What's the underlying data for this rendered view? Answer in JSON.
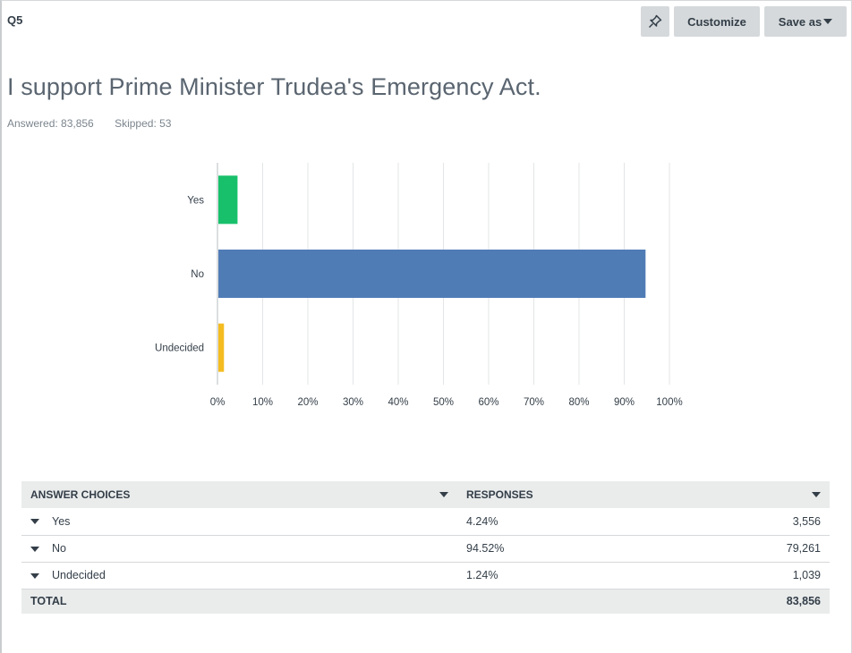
{
  "header": {
    "question_number": "Q5",
    "customize_label": "Customize",
    "save_as_label": "Save as",
    "pin_icon": "pin-icon"
  },
  "question": {
    "title": "I support Prime Minister Trudea's Emergency Act.",
    "answered": "Answered: 83,856",
    "skipped": "Skipped: 53"
  },
  "chart_data": {
    "type": "bar",
    "orientation": "horizontal",
    "categories": [
      "Yes",
      "No",
      "Undecided"
    ],
    "values": [
      4.24,
      94.52,
      1.24
    ],
    "colors": [
      "#18c06b",
      "#507cb6",
      "#f4bc21"
    ],
    "xlim": [
      0,
      100
    ],
    "xticks": [
      "0%",
      "10%",
      "20%",
      "30%",
      "40%",
      "50%",
      "60%",
      "70%",
      "80%",
      "90%",
      "100%"
    ],
    "grid": true
  },
  "table": {
    "headers": {
      "choices": "ANSWER CHOICES",
      "responses": "RESPONSES"
    },
    "rows": [
      {
        "choice": "Yes",
        "percent": "4.24%",
        "count": "3,556"
      },
      {
        "choice": "No",
        "percent": "94.52%",
        "count": "79,261"
      },
      {
        "choice": "Undecided",
        "percent": "1.24%",
        "count": "1,039"
      }
    ],
    "total": {
      "label": "TOTAL",
      "count": "83,856"
    }
  }
}
